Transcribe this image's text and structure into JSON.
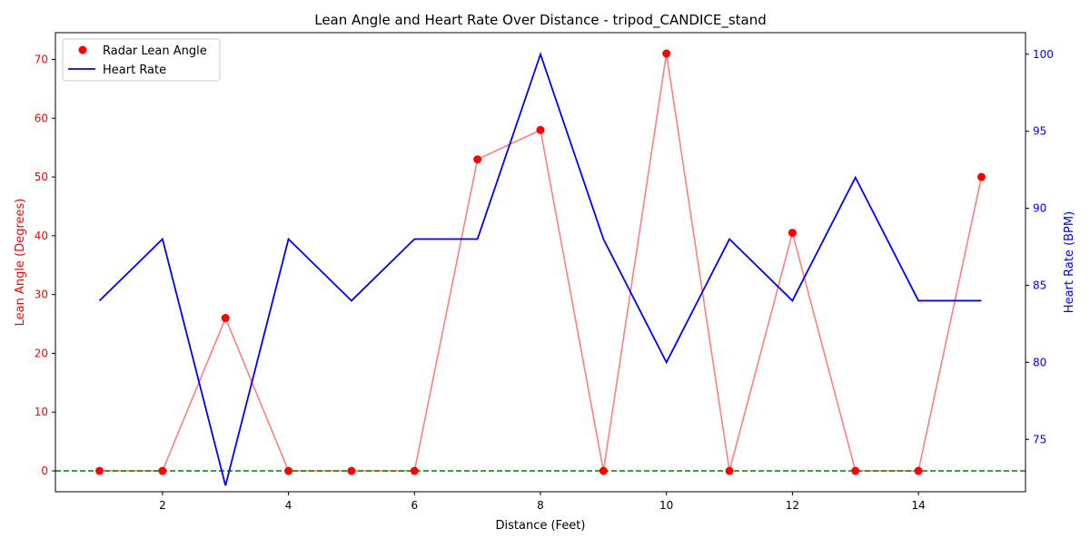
{
  "chart_data": {
    "type": "line",
    "title": "Lean Angle and Heart Rate Over Distance - tripod_CANDICE_stand",
    "xlabel": "Distance (Feet)",
    "ylabel_left": "Lean Angle (Degrees)",
    "ylabel_right": "Heart Rate (BPM)",
    "x": [
      1,
      2,
      3,
      4,
      5,
      6,
      7,
      8,
      9,
      10,
      11,
      12,
      13,
      14,
      15
    ],
    "xlim": [
      0.3,
      15.7
    ],
    "ylim_left": [
      -3.55,
      74.55
    ],
    "ylim_right": [
      71.6,
      101.4
    ],
    "xticks": [
      2,
      4,
      6,
      8,
      10,
      12,
      14
    ],
    "yticks_left": [
      0,
      10,
      20,
      30,
      40,
      50,
      60,
      70
    ],
    "yticks_right": [
      75,
      80,
      85,
      90,
      95,
      100
    ],
    "series": [
      {
        "name": "Radar Lean Angle",
        "axis": "left",
        "style": "markers with light line",
        "color": "#ff0000",
        "line_color": "#ff7f7f",
        "values": [
          0,
          0,
          26,
          0,
          0,
          0,
          53,
          58,
          0,
          71,
          0,
          40.5,
          0,
          0,
          50
        ]
      },
      {
        "name": "Heart Rate",
        "axis": "right",
        "style": "line",
        "color": "#0000ff",
        "values": [
          84,
          88,
          72,
          88,
          84,
          88,
          88,
          100,
          88,
          80,
          88,
          84,
          92,
          84,
          84
        ]
      }
    ],
    "reference_line": {
      "axis": "left",
      "y": 0,
      "color": "#008000",
      "style": "dashed"
    },
    "legend": {
      "placement": "top-left",
      "entries": [
        "Radar Lean Angle",
        "Heart Rate"
      ]
    },
    "grid": false
  }
}
